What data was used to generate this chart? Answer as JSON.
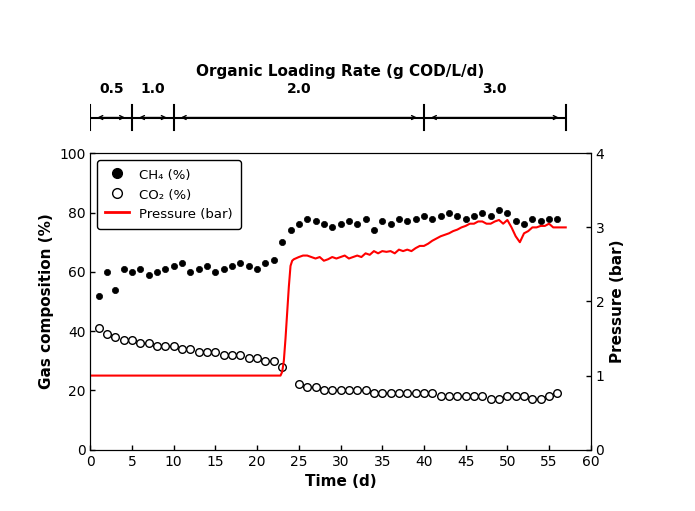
{
  "title_top": "Organic Loading Rate (g COD/L/d)",
  "xlabel": "Time (d)",
  "ylabel_left": "Gas composition (%)",
  "ylabel_right": "Pressure (bar)",
  "xlim": [
    0,
    60
  ],
  "ylim_left": [
    0,
    100
  ],
  "ylim_right": [
    0,
    4
  ],
  "xticks": [
    0,
    5,
    10,
    15,
    20,
    25,
    30,
    35,
    40,
    45,
    50,
    55,
    60
  ],
  "yticks_left": [
    0,
    20,
    40,
    60,
    80,
    100
  ],
  "yticks_right": [
    0,
    1,
    2,
    3,
    4
  ],
  "olr_sections": [
    {
      "label": "0.5",
      "x_start": 0,
      "x_end": 5,
      "mid": 2.5
    },
    {
      "label": "1.0",
      "x_start": 5,
      "x_end": 10,
      "mid": 7.5
    },
    {
      "label": "2.0",
      "x_start": 10,
      "x_end": 40,
      "mid": 25.0
    },
    {
      "label": "3.0",
      "x_start": 40,
      "x_end": 57,
      "mid": 48.5
    }
  ],
  "olr_boundaries": [
    0,
    5,
    10,
    40,
    57
  ],
  "ch4_x": [
    1,
    2,
    3,
    4,
    5,
    6,
    7,
    8,
    9,
    10,
    11,
    12,
    13,
    14,
    15,
    16,
    17,
    18,
    19,
    20,
    21,
    22,
    23,
    24,
    25,
    26,
    27,
    28,
    29,
    30,
    31,
    32,
    33,
    34,
    35,
    36,
    37,
    38,
    39,
    40,
    41,
    42,
    43,
    44,
    45,
    46,
    47,
    48,
    49,
    50,
    51,
    52,
    53,
    54,
    55,
    56
  ],
  "ch4_y": [
    52,
    60,
    54,
    61,
    60,
    61,
    59,
    60,
    61,
    62,
    63,
    60,
    61,
    62,
    60,
    61,
    62,
    63,
    62,
    61,
    63,
    64,
    70,
    74,
    76,
    78,
    77,
    76,
    75,
    76,
    77,
    76,
    78,
    74,
    77,
    76,
    78,
    77,
    78,
    79,
    78,
    79,
    80,
    79,
    78,
    79,
    80,
    79,
    81,
    80,
    77,
    76,
    78,
    77,
    78,
    78
  ],
  "co2_x": [
    1,
    2,
    3,
    4,
    5,
    6,
    7,
    8,
    9,
    10,
    11,
    12,
    13,
    14,
    15,
    16,
    17,
    18,
    19,
    20,
    21,
    22,
    23,
    25,
    26,
    27,
    28,
    29,
    30,
    31,
    32,
    33,
    34,
    35,
    36,
    37,
    38,
    39,
    40,
    41,
    42,
    43,
    44,
    45,
    46,
    47,
    48,
    49,
    50,
    51,
    52,
    53,
    54,
    55,
    56
  ],
  "co2_y": [
    41,
    39,
    38,
    37,
    37,
    36,
    36,
    35,
    35,
    35,
    34,
    34,
    33,
    33,
    33,
    32,
    32,
    32,
    31,
    31,
    30,
    30,
    28,
    22,
    21,
    21,
    20,
    20,
    20,
    20,
    20,
    20,
    19,
    19,
    19,
    19,
    19,
    19,
    19,
    19,
    18,
    18,
    18,
    18,
    18,
    18,
    17,
    17,
    18,
    18,
    18,
    17,
    17,
    18,
    19
  ],
  "pressure_x": [
    0.0,
    22.8,
    23.0,
    23.2,
    23.4,
    23.6,
    23.8,
    24.0,
    24.2,
    24.4,
    24.6,
    24.8,
    25.0,
    25.5,
    26.0,
    26.5,
    27.0,
    27.5,
    28.0,
    28.5,
    29.0,
    29.5,
    30.0,
    30.5,
    31.0,
    31.5,
    32.0,
    32.5,
    33.0,
    33.5,
    34.0,
    34.5,
    35.0,
    35.5,
    36.0,
    36.5,
    37.0,
    37.5,
    38.0,
    38.5,
    39.0,
    39.5,
    40.0,
    40.5,
    41.0,
    41.5,
    42.0,
    42.5,
    43.0,
    43.5,
    44.0,
    44.5,
    45.0,
    45.5,
    46.0,
    46.5,
    47.0,
    47.5,
    48.0,
    48.5,
    49.0,
    49.5,
    50.0,
    50.5,
    51.0,
    51.5,
    52.0,
    52.5,
    53.0,
    53.5,
    54.0,
    54.5,
    55.0,
    55.5,
    56.0,
    57.0
  ],
  "pressure_y": [
    1.0,
    1.0,
    1.05,
    1.2,
    1.5,
    1.85,
    2.2,
    2.48,
    2.55,
    2.57,
    2.58,
    2.59,
    2.6,
    2.62,
    2.62,
    2.6,
    2.58,
    2.6,
    2.55,
    2.57,
    2.6,
    2.58,
    2.6,
    2.62,
    2.58,
    2.6,
    2.62,
    2.6,
    2.65,
    2.63,
    2.68,
    2.65,
    2.68,
    2.67,
    2.68,
    2.65,
    2.7,
    2.68,
    2.7,
    2.68,
    2.72,
    2.75,
    2.75,
    2.78,
    2.82,
    2.85,
    2.88,
    2.9,
    2.92,
    2.95,
    2.97,
    3.0,
    3.02,
    3.05,
    3.05,
    3.08,
    3.08,
    3.05,
    3.05,
    3.08,
    3.1,
    3.05,
    3.1,
    3.0,
    2.88,
    2.8,
    2.92,
    2.95,
    3.0,
    3.0,
    3.02,
    3.02,
    3.05,
    3.0,
    3.0,
    3.0
  ],
  "ch4_color": "#000000",
  "co2_color": "#000000",
  "pressure_color": "#FF0000",
  "legend_ch4": "CH₄ (%)",
  "legend_co2": "CO₂ (%)",
  "legend_pressure": "Pressure (bar)"
}
